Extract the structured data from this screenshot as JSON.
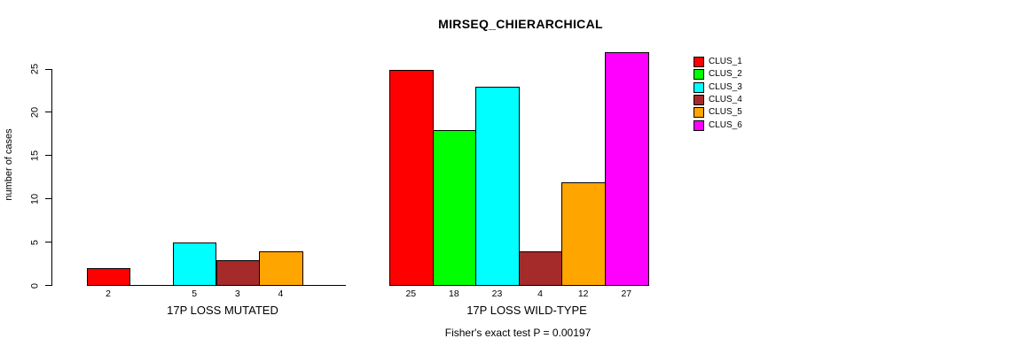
{
  "chart_data": {
    "type": "bar",
    "title": "MIRSEQ_CHIERARCHICAL",
    "ylabel": "number of cases",
    "categories": [
      "17P LOSS MUTATED",
      "17P LOSS WILD-TYPE"
    ],
    "series": [
      {
        "name": "CLUS_1",
        "color": "#ff0000",
        "values": [
          2,
          25
        ]
      },
      {
        "name": "CLUS_2",
        "color": "#00ff00",
        "values": [
          0,
          18
        ]
      },
      {
        "name": "CLUS_3",
        "color": "#00ffff",
        "values": [
          5,
          23
        ]
      },
      {
        "name": "CLUS_4",
        "color": "#a52a2a",
        "values": [
          3,
          4
        ]
      },
      {
        "name": "CLUS_5",
        "color": "#ffa500",
        "values": [
          4,
          12
        ]
      },
      {
        "name": "CLUS_6",
        "color": "#ff00ff",
        "values": [
          0,
          27
        ]
      }
    ],
    "yticks": [
      0,
      5,
      10,
      15,
      20,
      25
    ],
    "ylim": [
      0,
      27
    ],
    "grid": false,
    "legend_position": "top-right",
    "bar_value_labels_shown_for_nonzero_only": true,
    "annotation": "Fisher's exact test P = 0.00197"
  }
}
